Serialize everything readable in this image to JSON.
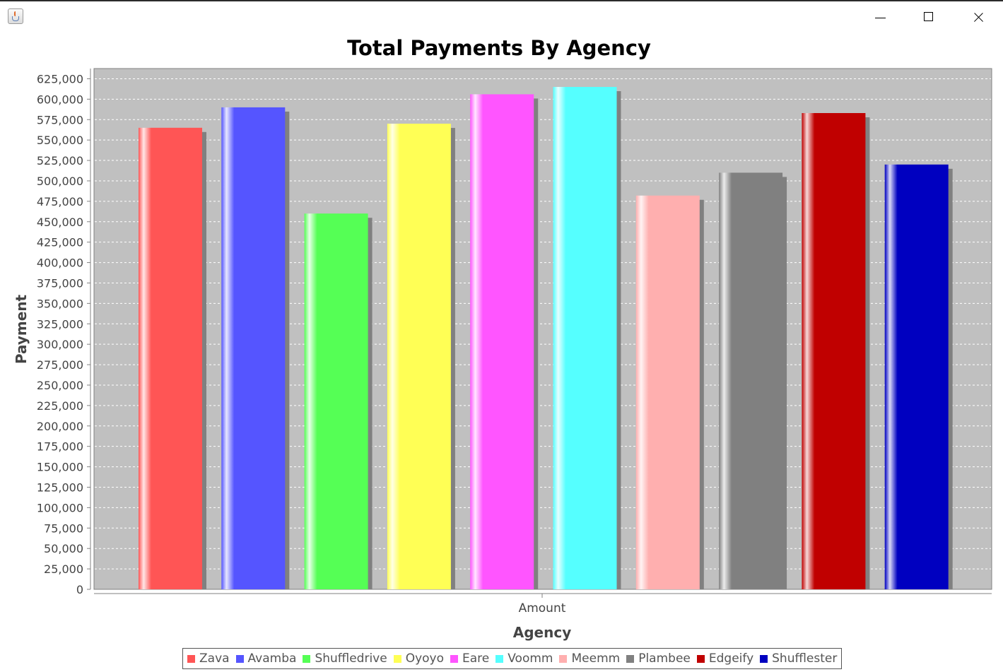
{
  "window": {
    "app_icon": "java-coffee-cup-icon",
    "controls": [
      "minimize-icon",
      "maximize-icon",
      "close-icon"
    ]
  },
  "chart_data": {
    "type": "bar",
    "title": "Total Payments By Agency",
    "xlabel": "Agency",
    "ylabel": "Payment",
    "categories": [
      "Amount"
    ],
    "ylim": [
      0,
      637500
    ],
    "ytick_step": 25000,
    "grid": true,
    "legend_position": "bottom",
    "series": [
      {
        "name": "Zava",
        "values": [
          565000
        ],
        "color": "#ff5555"
      },
      {
        "name": "Avamba",
        "values": [
          590000
        ],
        "color": "#5555ff"
      },
      {
        "name": "Shuffledrive",
        "values": [
          460000
        ],
        "color": "#55ff55"
      },
      {
        "name": "Oyoyo",
        "values": [
          570000
        ],
        "color": "#ffff55"
      },
      {
        "name": "Eare",
        "values": [
          606000
        ],
        "color": "#ff55ff"
      },
      {
        "name": "Voomm",
        "values": [
          615000
        ],
        "color": "#55ffff"
      },
      {
        "name": "Meemm",
        "values": [
          482000
        ],
        "color": "#ffafaf"
      },
      {
        "name": "Plambee",
        "values": [
          510000
        ],
        "color": "#808080"
      },
      {
        "name": "Edgeify",
        "values": [
          583000
        ],
        "color": "#c00000"
      },
      {
        "name": "Shufflester",
        "values": [
          520000
        ],
        "color": "#0000c0"
      }
    ]
  }
}
